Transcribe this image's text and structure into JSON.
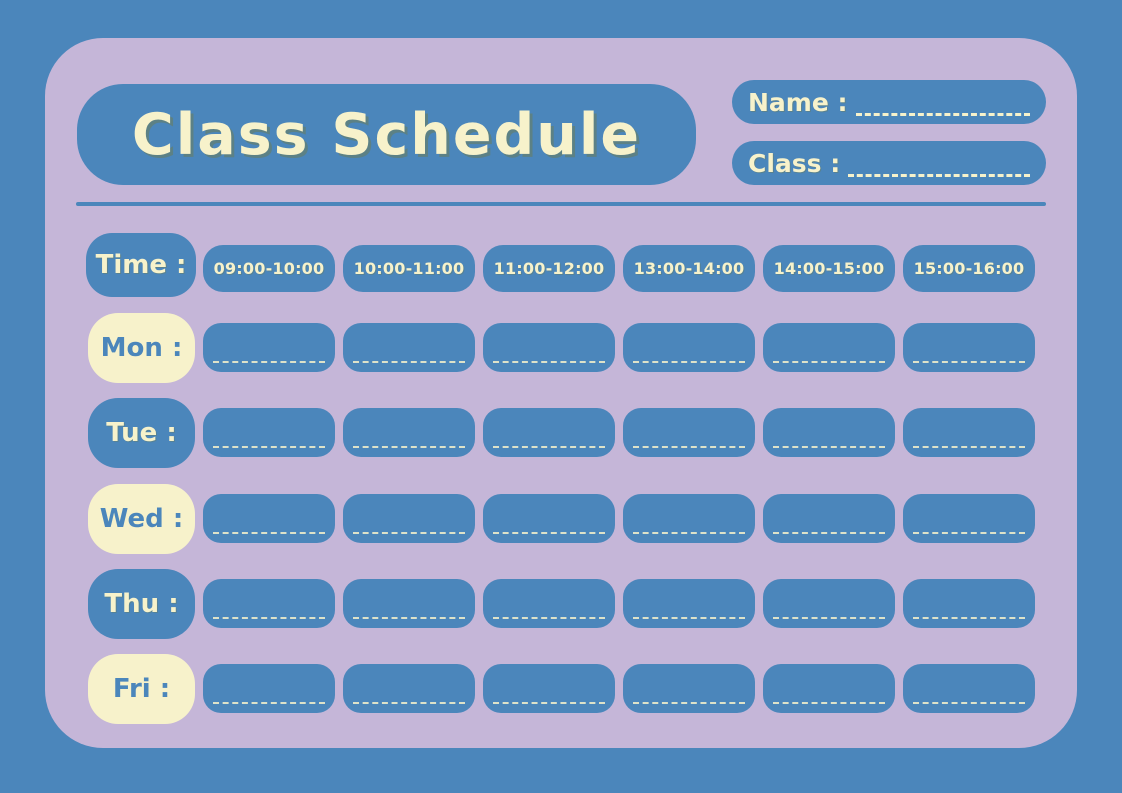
{
  "title": "Class Schedule",
  "fields": {
    "name_label": "Name :",
    "name_value": "",
    "class_label": "Class :",
    "class_value": ""
  },
  "schedule": {
    "time_label": "Time :",
    "time_slots": [
      "09:00-10:00",
      "10:00-11:00",
      "11:00-12:00",
      "13:00-14:00",
      "14:00-15:00",
      "15:00-16:00"
    ],
    "days": [
      {
        "label": "Mon :",
        "variant": "cream",
        "entries": [
          "",
          "",
          "",
          "",
          "",
          ""
        ]
      },
      {
        "label": "Tue :",
        "variant": "blue",
        "entries": [
          "",
          "",
          "",
          "",
          "",
          ""
        ]
      },
      {
        "label": "Wed :",
        "variant": "cream",
        "entries": [
          "",
          "",
          "",
          "",
          "",
          ""
        ]
      },
      {
        "label": "Thu :",
        "variant": "blue",
        "entries": [
          "",
          "",
          "",
          "",
          "",
          ""
        ]
      },
      {
        "label": "Fri :",
        "variant": "cream",
        "entries": [
          "",
          "",
          "",
          "",
          "",
          ""
        ]
      }
    ]
  },
  "colors": {
    "background_blue": "#4B86BB",
    "panel_lavender": "#C5B6D8",
    "box_blue": "#4B86BB",
    "cream": "#F7F2CB"
  }
}
